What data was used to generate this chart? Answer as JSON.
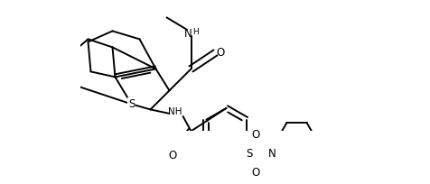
{
  "figure_width": 4.77,
  "figure_height": 2.04,
  "dpi": 100,
  "bg_color": "#ffffff",
  "line_color": "#000000",
  "line_width": 1.4,
  "font_size": 7.5,
  "xlim": [
    -0.2,
    9.8
  ],
  "ylim": [
    -0.5,
    4.3
  ]
}
